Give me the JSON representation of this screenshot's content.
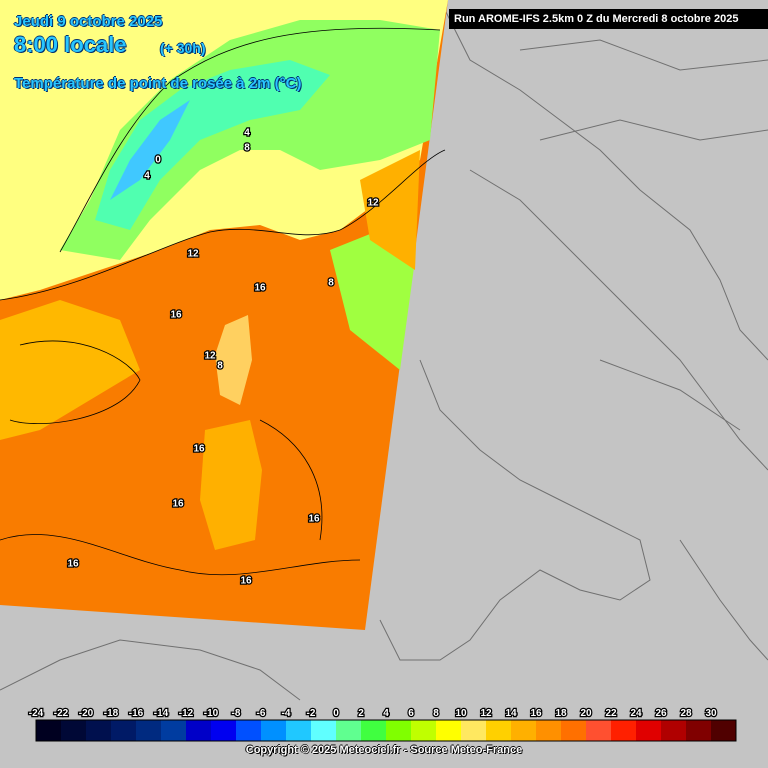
{
  "header": {
    "date": "Jeudi 9 octobre 2025",
    "time": "8:00 locale",
    "lead": "(+ 30h)",
    "variable": "Température de point de rosée à 2m (°C)"
  },
  "run": "Run AROME-IFS 2.5km 0 Z du Mercredi 8 octobre 2025",
  "contour_labels": [
    "4",
    "8",
    "0",
    "4",
    "12",
    "16",
    "16",
    "12",
    "8",
    "12",
    "8",
    "16",
    "16",
    "16",
    "16",
    "16"
  ],
  "scale": {
    "labels": [
      -24,
      -22,
      -20,
      -18,
      -16,
      -14,
      -12,
      -10,
      -8,
      -6,
      -4,
      -2,
      0,
      2,
      4,
      6,
      8,
      10,
      12,
      14,
      16,
      18,
      20,
      22,
      24,
      26,
      28,
      30
    ],
    "colors": [
      "#000020",
      "#000836",
      "#00104e",
      "#001a66",
      "#002a80",
      "#003ca0",
      "#0000c8",
      "#0000f0",
      "#0050ff",
      "#0090ff",
      "#20c8ff",
      "#60ffff",
      "#60ff90",
      "#40ff40",
      "#80ff00",
      "#c0ff00",
      "#ffff00",
      "#ffe860",
      "#ffd000",
      "#ffb000",
      "#ff9000",
      "#ff7000",
      "#ff5030",
      "#ff2000",
      "#e00000",
      "#b00000",
      "#800000",
      "#500000"
    ]
  },
  "copyright": "Copyright © 2025 Meteociel.fr - Source Meteo-France"
}
